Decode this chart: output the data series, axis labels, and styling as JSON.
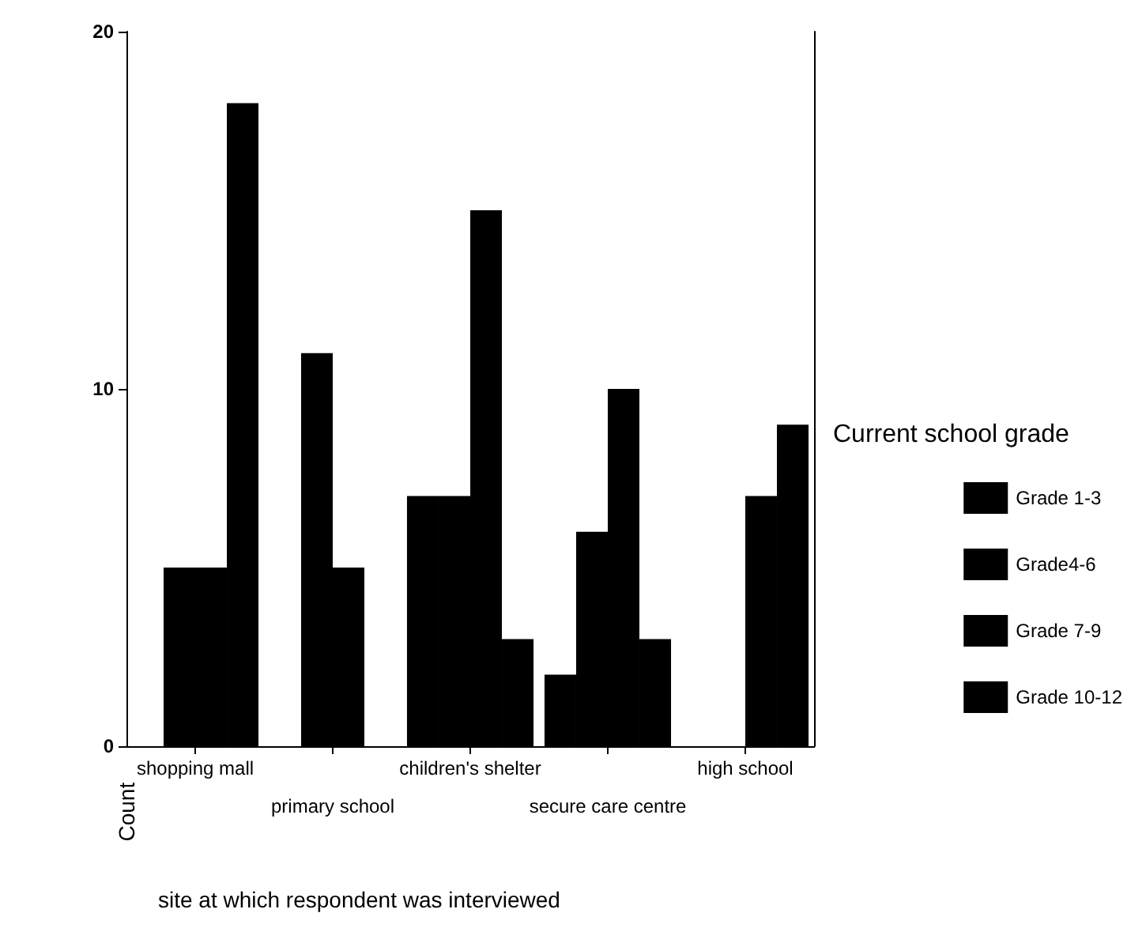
{
  "chart_data": {
    "type": "bar",
    "categories": [
      "shopping mall",
      "primary school",
      "children's shelter",
      "secure care centre",
      "high school"
    ],
    "series": [
      {
        "name": "Grade 1-3",
        "color": "#000000",
        "values": [
          0,
          0,
          7,
          2,
          0
        ]
      },
      {
        "name": "Grade4-6",
        "color": "#000000",
        "values": [
          5,
          11,
          7,
          6,
          0
        ]
      },
      {
        "name": "Grade 7-9",
        "color": "#000000",
        "values": [
          5,
          5,
          15,
          10,
          7
        ]
      },
      {
        "name": "Grade 10-12",
        "color": "#000000",
        "values": [
          18,
          0,
          3,
          3,
          9
        ]
      }
    ],
    "xlabel": "site at which respondent was interviewed",
    "ylabel": "Count",
    "legend_title": "Current school grade",
    "ylim": [
      0,
      20
    ],
    "yticks": [
      0,
      10,
      20
    ],
    "grid": false,
    "legend": "right"
  }
}
